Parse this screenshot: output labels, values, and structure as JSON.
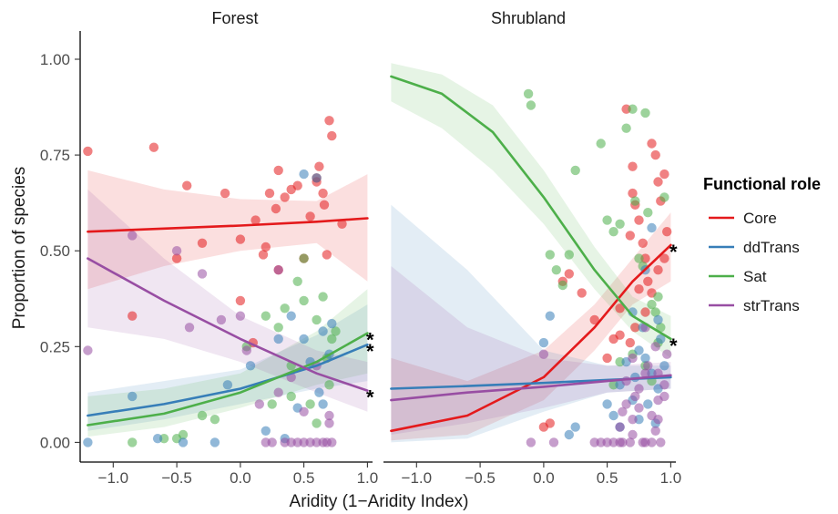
{
  "chart_data": {
    "type": "scatter",
    "xlabel": "Aridity (1−Aridity Index)",
    "ylabel": "Proportion of species",
    "xlim": [
      -1.26,
      1.04
    ],
    "ylim": [
      -0.03,
      1.05
    ],
    "xticks": [
      -1.0,
      -0.5,
      0.0,
      0.5,
      1.0
    ],
    "xtick_labels": [
      "−1.0",
      "−0.5",
      "0.0",
      "0.5",
      "1.0"
    ],
    "yticks": [
      0.0,
      0.25,
      0.5,
      0.75,
      1.0
    ],
    "ytick_labels": [
      "0.00",
      "0.25",
      "0.50",
      "0.75",
      "1.00"
    ],
    "grid": false,
    "legend": {
      "title": "Functional role",
      "position": "right",
      "entries": [
        {
          "label": "Core",
          "color": "#e41a1c"
        },
        {
          "label": "ddTrans",
          "color": "#377eb8"
        },
        {
          "label": "Sat",
          "color": "#4daf4a"
        },
        {
          "label": "strTrans",
          "color": "#984ea3"
        }
      ]
    },
    "significance_marker": "*",
    "panels": [
      {
        "title": "Forest",
        "significant": [
          "Sat",
          "ddTrans",
          "strTrans"
        ],
        "trends": [
          {
            "role": "Core",
            "x": [
              -1.2,
              -0.6,
              0.0,
              0.6,
              1.0
            ],
            "y": [
              0.55,
              0.558,
              0.566,
              0.576,
              0.585
            ],
            "lower": [
              0.4,
              0.46,
              0.5,
              0.52,
              0.42
            ],
            "upper": [
              0.71,
              0.66,
              0.635,
              0.63,
              0.7
            ]
          },
          {
            "role": "ddTrans",
            "x": [
              -1.2,
              -0.6,
              0.0,
              0.6,
              1.0
            ],
            "y": [
              0.07,
              0.1,
              0.14,
              0.2,
              0.255
            ],
            "lower": [
              0.03,
              0.06,
              0.1,
              0.14,
              0.16
            ],
            "upper": [
              0.13,
              0.16,
              0.19,
              0.28,
              0.36
            ]
          },
          {
            "role": "Sat",
            "x": [
              -1.2,
              -0.6,
              0.0,
              0.6,
              1.0
            ],
            "y": [
              0.045,
              0.075,
              0.13,
              0.21,
              0.285
            ],
            "lower": [
              0.015,
              0.04,
              0.09,
              0.15,
              0.18
            ],
            "upper": [
              0.12,
              0.14,
              0.18,
              0.29,
              0.4
            ]
          },
          {
            "role": "strTrans",
            "x": [
              -1.2,
              -0.6,
              0.0,
              0.6,
              1.0
            ],
            "y": [
              0.48,
              0.37,
              0.27,
              0.18,
              0.135
            ],
            "lower": [
              0.3,
              0.27,
              0.21,
              0.13,
              0.08
            ],
            "upper": [
              0.66,
              0.48,
              0.33,
              0.24,
              0.21
            ]
          }
        ],
        "points": [
          {
            "role": "Core",
            "x": [
              -1.2,
              -0.85,
              -0.68,
              -0.5,
              -0.42,
              -0.3,
              -0.12,
              0.0,
              0.0,
              0.12,
              0.18,
              0.23,
              0.28,
              0.3,
              0.35,
              0.4,
              0.45,
              0.5,
              0.55,
              0.6,
              0.62,
              0.65,
              0.66,
              0.68,
              0.7,
              0.72,
              0.8,
              0.2,
              0.3,
              0.1,
              0.6
            ],
            "y": [
              0.76,
              0.33,
              0.77,
              0.48,
              0.67,
              0.52,
              0.65,
              0.53,
              0.37,
              0.58,
              0.49,
              0.65,
              0.61,
              0.71,
              0.64,
              0.66,
              0.67,
              0.48,
              0.59,
              0.69,
              0.72,
              0.65,
              0.62,
              0.49,
              0.84,
              0.8,
              0.57,
              0.51,
              0.45,
              0.26,
              0.68
            ]
          },
          {
            "role": "Sat",
            "x": [
              -0.85,
              -0.6,
              -0.5,
              -0.45,
              -0.3,
              -0.2,
              0.05,
              0.2,
              0.3,
              0.35,
              0.4,
              0.45,
              0.5,
              0.5,
              0.55,
              0.6,
              0.65,
              0.68,
              0.7,
              0.72,
              0.75,
              0.25,
              0.4,
              0.6
            ],
            "y": [
              0.0,
              0.01,
              0.01,
              0.02,
              0.07,
              0.06,
              0.25,
              0.33,
              0.3,
              0.35,
              0.12,
              0.42,
              0.48,
              0.37,
              0.1,
              0.32,
              0.38,
              0.22,
              0.15,
              0.27,
              0.29,
              0.1,
              0.2,
              0.05
            ]
          },
          {
            "role": "ddTrans",
            "x": [
              -1.2,
              -0.85,
              -0.65,
              -0.45,
              -0.2,
              -0.1,
              0.08,
              0.2,
              0.3,
              0.4,
              0.45,
              0.5,
              0.55,
              0.6,
              0.62,
              0.65,
              0.7,
              0.72,
              0.35,
              0.5,
              0.65
            ],
            "y": [
              0.0,
              0.12,
              0.01,
              0.0,
              0.0,
              0.15,
              0.2,
              0.03,
              0.27,
              0.33,
              0.09,
              0.7,
              0.21,
              0.69,
              0.13,
              0.29,
              0.23,
              0.31,
              0.01,
              0.27,
              0.1
            ]
          },
          {
            "role": "strTrans",
            "x": [
              -1.2,
              -0.85,
              -0.5,
              -0.4,
              -0.3,
              -0.15,
              0.0,
              0.05,
              0.15,
              0.2,
              0.25,
              0.3,
              0.35,
              0.4,
              0.45,
              0.5,
              0.55,
              0.6,
              0.65,
              0.68,
              0.7,
              0.72,
              0.3,
              0.4,
              0.5,
              0.6,
              0.7
            ],
            "y": [
              0.24,
              0.54,
              0.5,
              0.3,
              0.44,
              0.32,
              0.33,
              0.24,
              0.1,
              0.0,
              0.0,
              0.45,
              0.0,
              0.0,
              0.0,
              0.0,
              0.0,
              0.0,
              0.0,
              0.0,
              0.05,
              0.0,
              0.13,
              0.17,
              0.08,
              0.2,
              0.07
            ]
          }
        ]
      },
      {
        "title": "Shrubland",
        "significant": [
          "Core",
          "Sat"
        ],
        "trends": [
          {
            "role": "Core",
            "x": [
              -1.2,
              -0.6,
              0.0,
              0.4,
              0.7,
              1.0
            ],
            "y": [
              0.03,
              0.07,
              0.17,
              0.3,
              0.42,
              0.515
            ],
            "lower": [
              0.005,
              0.02,
              0.11,
              0.24,
              0.36,
              0.42
            ],
            "upper": [
              0.22,
              0.16,
              0.24,
              0.36,
              0.48,
              0.6
            ]
          },
          {
            "role": "ddTrans",
            "x": [
              -1.2,
              -0.6,
              0.0,
              0.5,
              1.0
            ],
            "y": [
              0.14,
              0.147,
              0.155,
              0.163,
              0.17
            ],
            "lower": [
              0.0,
              0.01,
              0.08,
              0.13,
              0.14
            ],
            "upper": [
              0.62,
              0.45,
              0.24,
              0.2,
              0.2
            ]
          },
          {
            "role": "Sat",
            "x": [
              -1.2,
              -0.8,
              -0.4,
              0.0,
              0.4,
              0.7,
              1.0
            ],
            "y": [
              0.955,
              0.91,
              0.81,
              0.64,
              0.45,
              0.33,
              0.27
            ],
            "lower": [
              0.89,
              0.82,
              0.71,
              0.57,
              0.4,
              0.29,
              0.22
            ],
            "upper": [
              0.99,
              0.96,
              0.88,
              0.71,
              0.51,
              0.38,
              0.33
            ]
          },
          {
            "role": "strTrans",
            "x": [
              -1.2,
              -0.6,
              0.0,
              0.5,
              1.0
            ],
            "y": [
              0.11,
              0.13,
              0.145,
              0.16,
              0.175
            ],
            "lower": [
              0.02,
              0.05,
              0.09,
              0.13,
              0.14
            ],
            "upper": [
              0.46,
              0.3,
              0.22,
              0.2,
              0.21
            ]
          }
        ],
        "points": [
          {
            "role": "Core",
            "x": [
              0.0,
              0.05,
              0.15,
              0.2,
              0.3,
              0.4,
              0.5,
              0.55,
              0.6,
              0.65,
              0.68,
              0.7,
              0.72,
              0.75,
              0.78,
              0.8,
              0.82,
              0.85,
              0.88,
              0.9,
              0.92,
              0.95,
              0.97,
              0.72,
              0.8,
              0.85,
              0.9,
              0.68,
              0.75,
              0.95,
              0.6,
              0.7
            ],
            "y": [
              0.04,
              0.05,
              0.42,
              0.44,
              0.39,
              0.32,
              0.22,
              0.27,
              0.28,
              0.87,
              0.54,
              0.72,
              0.62,
              0.58,
              0.52,
              0.48,
              0.42,
              0.78,
              0.75,
              0.68,
              0.63,
              0.7,
              0.55,
              0.3,
              0.34,
              0.39,
              0.45,
              0.26,
              0.4,
              0.48,
              0.35,
              0.65
            ]
          },
          {
            "role": "Sat",
            "x": [
              -0.12,
              -0.1,
              0.05,
              0.1,
              0.15,
              0.2,
              0.25,
              0.45,
              0.5,
              0.55,
              0.6,
              0.65,
              0.7,
              0.72,
              0.75,
              0.78,
              0.8,
              0.82,
              0.85,
              0.88,
              0.9,
              0.92,
              0.95,
              0.6,
              0.7,
              0.85,
              0.9,
              0.55,
              0.8
            ],
            "y": [
              0.91,
              0.88,
              0.49,
              0.45,
              0.41,
              0.49,
              0.71,
              0.78,
              0.58,
              0.55,
              0.57,
              0.82,
              0.87,
              0.63,
              0.48,
              0.46,
              0.86,
              0.6,
              0.36,
              0.34,
              0.38,
              0.3,
              0.64,
              0.21,
              0.23,
              0.16,
              0.26,
              0.15,
              0.2
            ]
          },
          {
            "role": "ddTrans",
            "x": [
              0.0,
              0.05,
              0.2,
              0.25,
              0.5,
              0.55,
              0.6,
              0.65,
              0.7,
              0.72,
              0.75,
              0.78,
              0.8,
              0.82,
              0.85,
              0.88,
              0.9,
              0.92,
              0.95,
              0.6,
              0.7,
              0.8,
              0.9,
              0.85,
              0.75
            ],
            "y": [
              0.26,
              0.33,
              0.02,
              0.04,
              0.1,
              0.07,
              0.15,
              0.21,
              0.34,
              0.17,
              0.24,
              0.3,
              0.22,
              0.1,
              0.56,
              0.05,
              0.14,
              0.27,
              0.2,
              0.04,
              0.11,
              0.45,
              0.32,
              0.18,
              0.06
            ]
          },
          {
            "role": "strTrans",
            "x": [
              -0.1,
              0.0,
              0.08,
              0.4,
              0.45,
              0.5,
              0.55,
              0.6,
              0.62,
              0.65,
              0.68,
              0.7,
              0.72,
              0.75,
              0.78,
              0.8,
              0.82,
              0.85,
              0.88,
              0.9,
              0.92,
              0.95,
              0.97,
              0.6,
              0.7,
              0.8,
              0.9,
              0.65,
              0.75,
              0.85,
              0.95,
              0.7,
              0.8,
              0.9,
              0.62,
              0.88
            ],
            "y": [
              0.0,
              0.23,
              0.0,
              0.0,
              0.0,
              0.0,
              0.0,
              0.0,
              0.08,
              0.1,
              0.0,
              0.06,
              0.12,
              0.14,
              0.0,
              0.18,
              0.2,
              0.0,
              0.25,
              0.11,
              0.0,
              0.15,
              0.23,
              0.04,
              0.22,
              0.3,
              0.06,
              0.16,
              0.09,
              0.07,
              0.12,
              0.02,
              0.0,
              0.18,
              0.0,
              0.03
            ]
          }
        ]
      }
    ]
  }
}
